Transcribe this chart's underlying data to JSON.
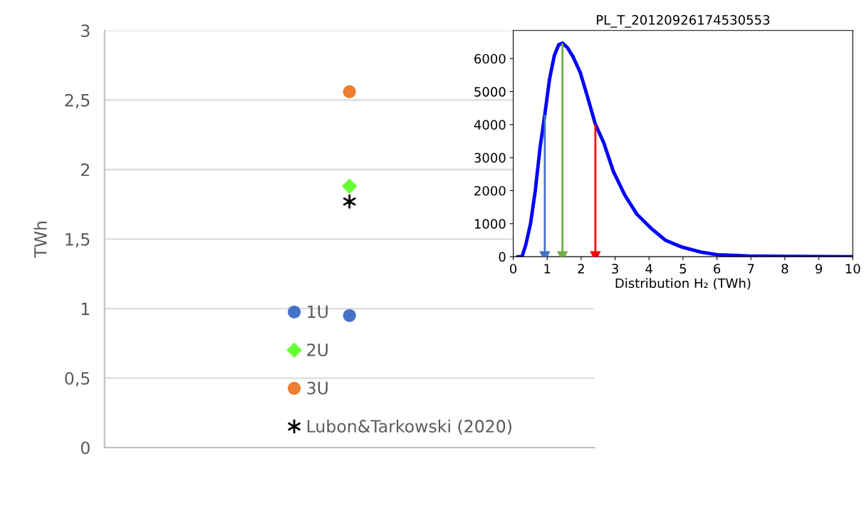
{
  "chart_data": [
    {
      "type": "scatter",
      "ylabel": "TWh",
      "categories": [
        null
      ],
      "ylim": [
        0,
        3
      ],
      "yticks": [
        0,
        {
          "value": 0.5,
          "label": "0,5"
        },
        1,
        {
          "value": 1.5,
          "label": "1,5"
        },
        2,
        {
          "value": 2.5,
          "label": "2,5"
        },
        3
      ],
      "grid": "y",
      "legend": "bottom",
      "series": [
        {
          "name": "1U",
          "color": "#4472c4",
          "marker": "circle",
          "values": [
            0.95
          ]
        },
        {
          "name": "2U",
          "color": "#66ff33",
          "marker": "diamond",
          "values": [
            1.88
          ]
        },
        {
          "name": "3U",
          "color": "#ed7d31",
          "marker": "circle",
          "values": [
            2.56
          ]
        },
        {
          "name": "Lubon&Tarkowski (2020)",
          "color": "#000000",
          "marker": "cross",
          "values": [
            1.77
          ]
        }
      ]
    },
    {
      "type": "line",
      "title": "PL_T_20120926174530553",
      "xlabel": "Distribution H₂ (TWh)",
      "xlim": [
        0,
        10
      ],
      "xticks": [
        0,
        1,
        2,
        3,
        4,
        5,
        6,
        7,
        8,
        9,
        10
      ],
      "ylim": [
        0,
        6850
      ],
      "yticks": [
        0,
        1000,
        2000,
        3000,
        4000,
        5000,
        6000
      ],
      "grid": false,
      "marker": "none",
      "series": [
        {
          "color": "#0000ff",
          "x": [
            0.13,
            0.26,
            0.37,
            0.51,
            0.65,
            0.79,
            0.93,
            1.07,
            1.21,
            1.34,
            1.45,
            1.59,
            1.76,
            1.97,
            2.18,
            2.42,
            2.67,
            2.95,
            3.29,
            3.64,
            4.06,
            4.48,
            4.97,
            5.52,
            6.01,
            6.92,
            7.96,
            10
          ],
          "values": [
            0,
            0,
            360,
            1000,
            2000,
            3300,
            4300,
            5380,
            6090,
            6420,
            6470,
            6340,
            6060,
            5590,
            4870,
            4010,
            3440,
            2580,
            1860,
            1290,
            860,
            500,
            290,
            140,
            60,
            20,
            10,
            0
          ]
        }
      ],
      "ref_lines": [
        {
          "axis": "x",
          "value": 0.93,
          "color": "#4472c4"
        },
        {
          "axis": "x",
          "value": 1.45,
          "color": "#70ad47"
        },
        {
          "axis": "x",
          "value": 2.42,
          "color": "#ff0000"
        }
      ]
    }
  ]
}
